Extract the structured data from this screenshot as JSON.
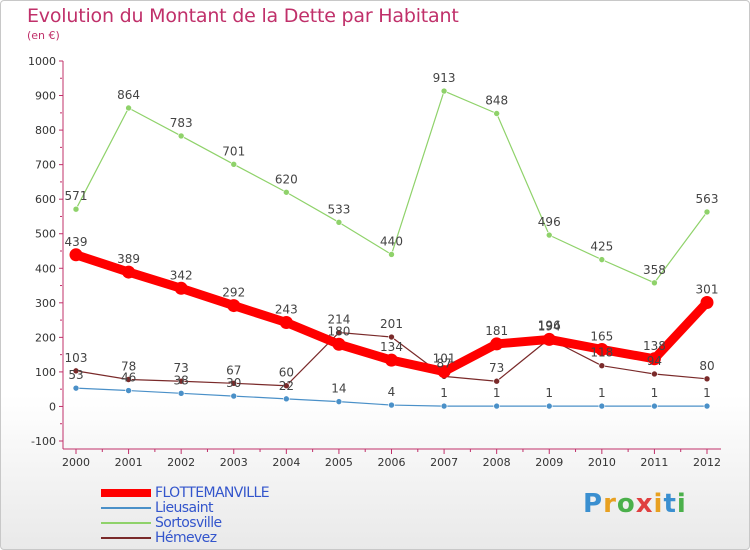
{
  "title": "Evolution du Montant de la Dette par Habitant",
  "unit_label": "(en €)",
  "logo_text": "Proxiti",
  "chart_data": {
    "type": "line",
    "title": "Evolution du Montant de la Dette par Habitant",
    "subtitle": "(en €)",
    "xlabel": "",
    "ylabel": "",
    "x": [
      "2000",
      "2001",
      "2002",
      "2003",
      "2004",
      "2005",
      "2006",
      "2007",
      "2008",
      "2009",
      "2010",
      "2011",
      "2012"
    ],
    "ylim": [
      -100,
      1000
    ],
    "yticks": [
      -100,
      0,
      100,
      200,
      300,
      400,
      500,
      600,
      700,
      800,
      900,
      1000
    ],
    "grid": false,
    "legend_position": "bottom-left",
    "series": [
      {
        "name": "FLOTTEMANVILLE",
        "color": "#ff0000",
        "values": [
          439,
          389,
          342,
          292,
          243,
          180,
          134,
          101,
          181,
          194,
          165,
          138,
          301
        ]
      },
      {
        "name": "Lieusaint",
        "color": "#4a90c8",
        "values": [
          53,
          46,
          38,
          30,
          22,
          14,
          4,
          1,
          1,
          1,
          1,
          1,
          1
        ]
      },
      {
        "name": "Sortosville",
        "color": "#8fd26a",
        "values": [
          571,
          864,
          783,
          701,
          620,
          533,
          440,
          913,
          848,
          496,
          425,
          358,
          563
        ]
      },
      {
        "name": "Hémevez",
        "color": "#7a2a2a",
        "values": [
          103,
          78,
          73,
          67,
          60,
          214,
          201,
          87,
          73,
          196,
          118,
          94,
          80
        ]
      }
    ]
  }
}
